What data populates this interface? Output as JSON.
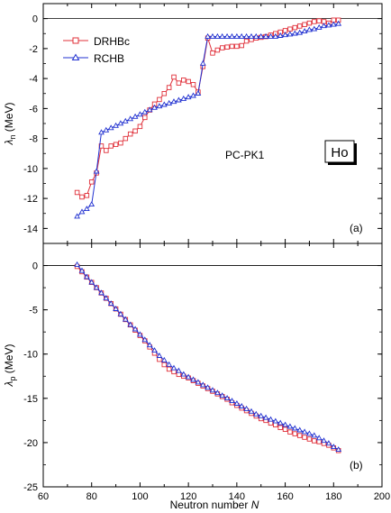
{
  "chart_data": [
    {
      "type": "line",
      "panel_label": "(a)",
      "ylabel_symbol": "λ",
      "ylabel_sub": "n",
      "ylabel_unit": " (MeV)",
      "xlim": [
        60,
        200
      ],
      "ylim": [
        -15,
        1
      ],
      "yticks": [
        0,
        -2,
        -4,
        -6,
        -8,
        -10,
        -12,
        -14
      ],
      "annotation": "PC-PK1",
      "element_box": "Ho",
      "legend_position": "top-left",
      "series": [
        {
          "name": "DRHBc",
          "color": "#e0303a",
          "marker": "square",
          "x": [
            74,
            76,
            78,
            80,
            82,
            84,
            86,
            88,
            90,
            92,
            94,
            96,
            98,
            100,
            102,
            104,
            106,
            108,
            110,
            112,
            114,
            116,
            118,
            120,
            122,
            124,
            126,
            128,
            130,
            132,
            134,
            136,
            138,
            140,
            142,
            144,
            146,
            148,
            150,
            152,
            154,
            156,
            158,
            160,
            162,
            164,
            166,
            168,
            170,
            172,
            174,
            176,
            178,
            180,
            182
          ],
          "y": [
            -11.6,
            -11.9,
            -11.8,
            -10.9,
            -10.3,
            -8.5,
            -8.8,
            -8.5,
            -8.4,
            -8.3,
            -8.0,
            -7.7,
            -7.5,
            -7.2,
            -6.6,
            -6.1,
            -5.7,
            -5.4,
            -5.0,
            -4.6,
            -3.9,
            -4.3,
            -4.1,
            -4.2,
            -4.4,
            -4.9,
            -3.2,
            -1.3,
            -2.3,
            -2.1,
            -1.95,
            -1.9,
            -1.85,
            -1.85,
            -1.8,
            -1.5,
            -1.4,
            -1.3,
            -1.25,
            -1.2,
            -1.1,
            -1.0,
            -0.9,
            -0.8,
            -0.7,
            -0.6,
            -0.5,
            -0.4,
            -0.3,
            -0.2,
            -0.15,
            -0.2,
            -0.3,
            -0.1,
            -0.1
          ]
        },
        {
          "name": "RCHB",
          "color": "#2030d0",
          "marker": "triangle",
          "x": [
            74,
            76,
            78,
            80,
            82,
            84,
            86,
            88,
            90,
            92,
            94,
            96,
            98,
            100,
            102,
            104,
            106,
            108,
            110,
            112,
            114,
            116,
            118,
            120,
            122,
            124,
            126,
            128,
            130,
            132,
            134,
            136,
            138,
            140,
            142,
            144,
            146,
            148,
            150,
            152,
            154,
            156,
            158,
            160,
            162,
            164,
            166,
            168,
            170,
            172,
            174,
            176,
            178,
            180,
            182
          ],
          "y": [
            -13.2,
            -12.9,
            -12.7,
            -12.4,
            -10.2,
            -7.6,
            -7.45,
            -7.3,
            -7.15,
            -7.0,
            -6.85,
            -6.7,
            -6.55,
            -6.4,
            -6.25,
            -6.1,
            -5.95,
            -5.85,
            -5.75,
            -5.65,
            -5.55,
            -5.45,
            -5.35,
            -5.25,
            -5.15,
            -5.0,
            -3.0,
            -1.2,
            -1.2,
            -1.2,
            -1.2,
            -1.2,
            -1.2,
            -1.2,
            -1.2,
            -1.2,
            -1.2,
            -1.2,
            -1.2,
            -1.2,
            -1.2,
            -1.2,
            -1.15,
            -1.1,
            -1.05,
            -1.0,
            -0.95,
            -0.85,
            -0.75,
            -0.7,
            -0.6,
            -0.5,
            -0.45,
            -0.4,
            -0.35
          ]
        }
      ]
    },
    {
      "type": "line",
      "panel_label": "(b)",
      "ylabel_symbol": "λ",
      "ylabel_sub": "p",
      "ylabel_unit": " (MeV)",
      "xlabel_text": "Neutron number ",
      "xlabel_symbol": "N",
      "xlim": [
        60,
        200
      ],
      "ylim": [
        -25,
        2.5
      ],
      "xticks": [
        60,
        80,
        100,
        120,
        140,
        160,
        180,
        200
      ],
      "yticks": [
        0,
        -5,
        -10,
        -15,
        -20,
        -25
      ],
      "series": [
        {
          "name": "DRHBc",
          "color": "#e0303a",
          "marker": "square",
          "x": [
            74,
            76,
            78,
            80,
            82,
            84,
            86,
            88,
            90,
            92,
            94,
            96,
            98,
            100,
            102,
            104,
            106,
            108,
            110,
            112,
            114,
            116,
            118,
            120,
            122,
            124,
            126,
            128,
            130,
            132,
            134,
            136,
            138,
            140,
            142,
            144,
            146,
            148,
            150,
            152,
            154,
            156,
            158,
            160,
            162,
            164,
            166,
            168,
            170,
            172,
            174,
            176,
            178,
            180,
            182
          ],
          "y": [
            -0.1,
            -0.7,
            -1.3,
            -1.9,
            -2.5,
            -3.1,
            -3.7,
            -4.3,
            -4.9,
            -5.5,
            -6.1,
            -6.7,
            -7.3,
            -7.9,
            -8.5,
            -9.2,
            -9.9,
            -10.6,
            -11.2,
            -11.7,
            -12.0,
            -12.3,
            -12.5,
            -12.7,
            -13.0,
            -13.3,
            -13.6,
            -13.9,
            -14.2,
            -14.5,
            -14.8,
            -15.1,
            -15.5,
            -15.8,
            -16.1,
            -16.4,
            -16.7,
            -17.0,
            -17.3,
            -17.5,
            -17.8,
            -18.0,
            -18.3,
            -18.5,
            -18.8,
            -19.0,
            -19.2,
            -19.4,
            -19.6,
            -19.8,
            -19.9,
            -20.1,
            -20.3,
            -20.6,
            -20.9
          ]
        },
        {
          "name": "RCHB",
          "color": "#2030d0",
          "marker": "triangle",
          "x": [
            74,
            76,
            78,
            80,
            82,
            84,
            86,
            88,
            90,
            92,
            94,
            96,
            98,
            100,
            102,
            104,
            106,
            108,
            110,
            112,
            114,
            116,
            118,
            120,
            122,
            124,
            126,
            128,
            130,
            132,
            134,
            136,
            138,
            140,
            142,
            144,
            146,
            148,
            150,
            152,
            154,
            156,
            158,
            160,
            162,
            164,
            166,
            168,
            170,
            172,
            174,
            176,
            178,
            180,
            182
          ],
          "y": [
            0.1,
            -0.6,
            -1.3,
            -1.9,
            -2.5,
            -3.1,
            -3.7,
            -4.3,
            -4.9,
            -5.5,
            -6.1,
            -6.7,
            -7.2,
            -7.8,
            -8.4,
            -9.0,
            -9.6,
            -10.2,
            -10.7,
            -11.2,
            -11.6,
            -11.9,
            -12.3,
            -12.6,
            -12.9,
            -13.2,
            -13.5,
            -13.8,
            -14.1,
            -14.4,
            -14.7,
            -15.0,
            -15.3,
            -15.6,
            -15.9,
            -16.2,
            -16.5,
            -16.8,
            -17.0,
            -17.2,
            -17.4,
            -17.6,
            -17.8,
            -18.0,
            -18.2,
            -18.4,
            -18.6,
            -18.8,
            -19.0,
            -19.2,
            -19.5,
            -19.8,
            -20.1,
            -20.5,
            -20.8
          ]
        }
      ]
    }
  ]
}
